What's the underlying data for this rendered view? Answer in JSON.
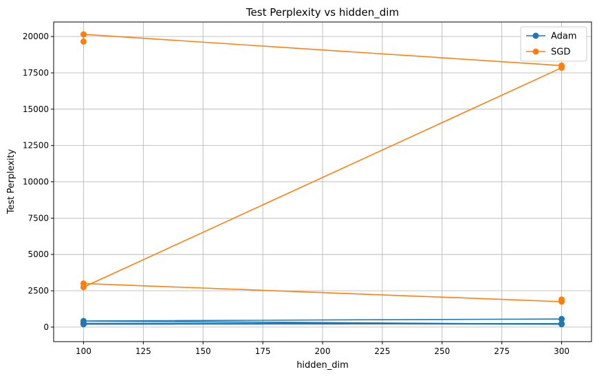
{
  "chart_data": {
    "type": "line",
    "title": "Test Perplexity vs hidden_dim",
    "xlabel": "hidden_dim",
    "ylabel": "Test Perplexity",
    "xlim": [
      87.5,
      312.5
    ],
    "ylim": [
      -1000,
      21000
    ],
    "xticks": [
      100,
      125,
      150,
      175,
      200,
      225,
      250,
      275,
      300
    ],
    "yticks": [
      0,
      2500,
      5000,
      7500,
      10000,
      12500,
      15000,
      17500,
      20000
    ],
    "grid": true,
    "legend_position": "top-right",
    "series": [
      {
        "name": "Adam",
        "color": "#1f77b4",
        "points": [
          {
            "x": 300,
            "y": 560
          },
          {
            "x": 100,
            "y": 420
          },
          {
            "x": 300,
            "y": 200
          },
          {
            "x": 100,
            "y": 260
          },
          {
            "x": 300,
            "y": 240
          },
          {
            "x": 100,
            "y": 200
          }
        ]
      },
      {
        "name": "SGD",
        "color": "#ff7f0e",
        "points": [
          {
            "x": 100,
            "y": 19650
          },
          {
            "x": 100,
            "y": 20150
          },
          {
            "x": 300,
            "y": 18000
          },
          {
            "x": 300,
            "y": 17850
          },
          {
            "x": 100,
            "y": 2750
          },
          {
            "x": 100,
            "y": 3000
          },
          {
            "x": 300,
            "y": 1750
          },
          {
            "x": 300,
            "y": 1900
          }
        ]
      }
    ]
  }
}
